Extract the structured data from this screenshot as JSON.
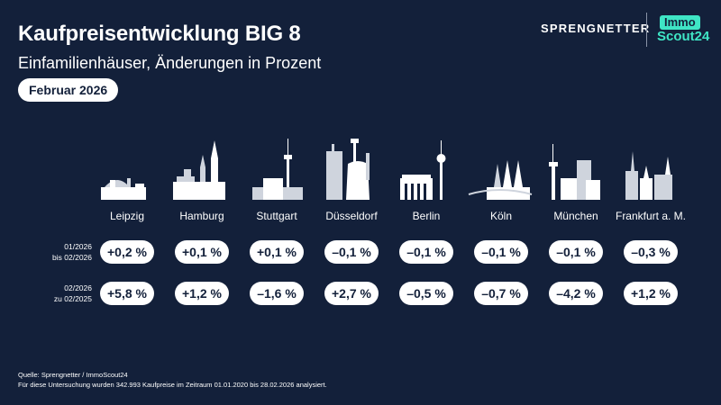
{
  "chart_data": {
    "type": "table",
    "title": "Kaufpreisentwicklung BIG 8",
    "subtitle": "Einfamilienhäuser, Änderungen in Prozent",
    "date_label": "Februar 2026",
    "categories": [
      "Leipzig",
      "Hamburg",
      "Stuttgart",
      "Düsseldorf",
      "Berlin",
      "Köln",
      "München",
      "Frankfurt a. M."
    ],
    "series": [
      {
        "name_line1": "01/2026",
        "name_line2": "bis 02/2026",
        "values": [
          0.2,
          0.1,
          0.1,
          -0.1,
          -0.1,
          -0.1,
          -0.1,
          -0.3
        ],
        "labels": [
          "+0,2 %",
          "+0,1 %",
          "+0,1 %",
          "–0,1 %",
          "–0,1 %",
          "–0,1 %",
          "–0,1 %",
          "–0,3 %"
        ]
      },
      {
        "name_line1": "02/2026",
        "name_line2": "zu 02/2025",
        "values": [
          5.8,
          1.2,
          -1.6,
          2.7,
          -0.5,
          -0.7,
          -4.2,
          1.2
        ],
        "labels": [
          "+5,8 %",
          "+1,2 %",
          "–1,6 %",
          "+2,7 %",
          "–0,5 %",
          "–0,7 %",
          "–4,2 %",
          "+1,2 %"
        ]
      }
    ]
  },
  "branding": {
    "sprengnetter": "SPRENGNETTER",
    "immo": "Immo",
    "scout": "Scout24"
  },
  "footer": {
    "source": "Quelle: Sprengnetter / ImmoScout24",
    "note": "Für diese Untersuchung wurden 342.993 Kaufpreise im Zeitraum 01.01.2020 bis 28.02.2026 analysiert."
  },
  "colors": {
    "background": "#13203a",
    "pill": "#ffffff",
    "accent": "#3fe5c5"
  }
}
